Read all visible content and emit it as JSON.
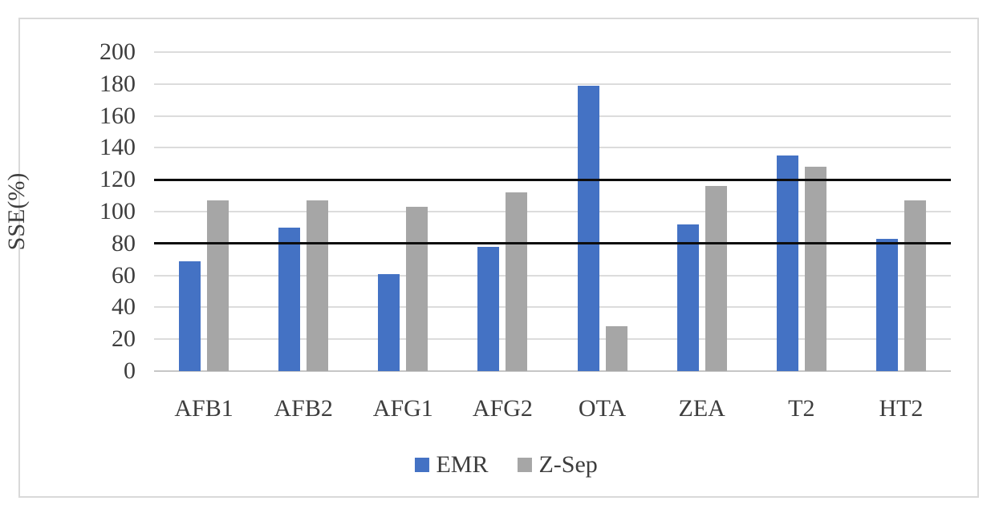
{
  "figure": {
    "background": "#ffffff",
    "border_color": "#d9d9d9"
  },
  "chart_data": {
    "type": "bar",
    "title": "",
    "xlabel": "",
    "ylabel": "SSE(%)",
    "categories": [
      "AFB1",
      "AFB2",
      "AFG1",
      "AFG2",
      "OTA",
      "ZEA",
      "T2",
      "HT2"
    ],
    "series": [
      {
        "name": "EMR",
        "color": "#4472C4",
        "values": [
          69,
          90,
          61,
          78,
          179,
          92,
          135,
          83
        ]
      },
      {
        "name": "Z-Sep",
        "color": "#A6A6A6",
        "values": [
          107,
          107,
          103,
          112,
          28,
          116,
          128,
          107
        ]
      }
    ],
    "ylim": [
      0,
      200
    ],
    "yticks": [
      0,
      20,
      40,
      60,
      80,
      100,
      120,
      140,
      160,
      180,
      200
    ],
    "reference_lines": [
      80,
      120
    ],
    "reference_line_color": "#0d0d0d",
    "grid": true,
    "gridline_color": "#dcdcdc",
    "axis_text_color": "#3d3d3d",
    "legend_position": "bottom-center"
  }
}
